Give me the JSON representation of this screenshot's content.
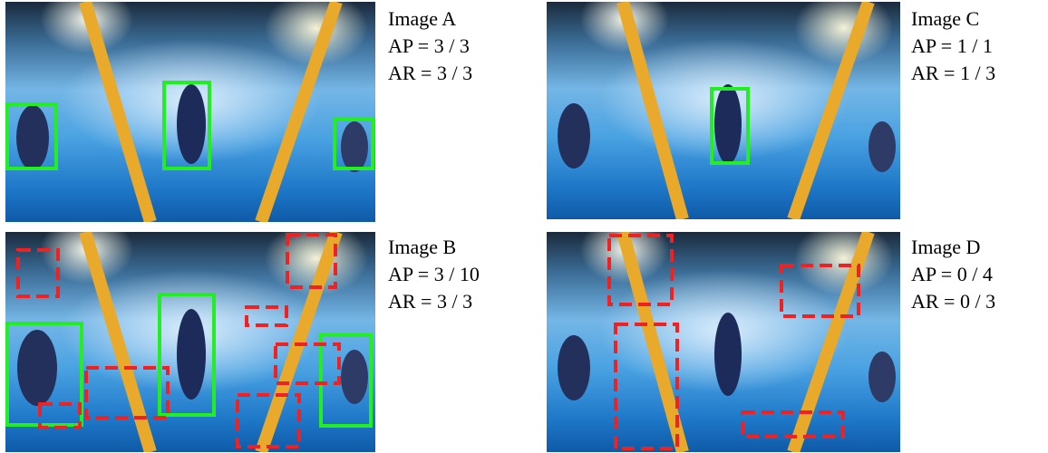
{
  "colors": {
    "true_positive": "#22ee22",
    "false_positive": "#ee2222"
  },
  "panels": [
    {
      "id": "A",
      "title": "Image A",
      "ap": "AP = 3 / 3",
      "ar": "AR = 3 / 3"
    },
    {
      "id": "B",
      "title": "Image B",
      "ap": "AP = 3 / 10",
      "ar": "AR = 3 / 3"
    },
    {
      "id": "C",
      "title": "Image C",
      "ap": "AP = 1 / 1",
      "ar": "AR = 1 / 3"
    },
    {
      "id": "D",
      "title": "Image D",
      "ap": "AP = 0 / 4",
      "ar": "AR = 0 / 3"
    }
  ]
}
